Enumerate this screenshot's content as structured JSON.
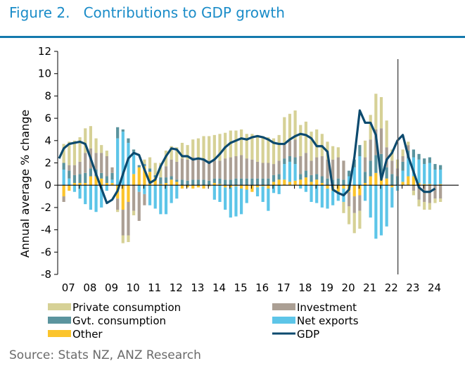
{
  "figure": {
    "title": "Figure 2.   Contributions to GDP growth",
    "source": "Source: Stats NZ, ANZ Research"
  },
  "chart_data": {
    "type": "bar",
    "stacked": true,
    "title": "Contributions to GDP growth",
    "xlabel": "",
    "ylabel": "Annual average % change",
    "ylim": [
      -8,
      12
    ],
    "yticks": [
      12,
      10,
      8,
      6,
      4,
      2,
      0,
      -2,
      -4,
      -6,
      -8
    ],
    "xtick_labels": [
      "07",
      "08",
      "09",
      "10",
      "11",
      "12",
      "13",
      "14",
      "15",
      "16",
      "17",
      "18",
      "19",
      "20",
      "21",
      "22",
      "23",
      "24"
    ],
    "x_start": 2007.0,
    "x_end": 2025.5,
    "frequency": "quarterly",
    "first_period": 2007.25,
    "vertical_marker": 2023.0,
    "grid": false,
    "legend_position": "bottom",
    "colors": {
      "Private consumption": "#d6d196",
      "Investment": "#ab9f94",
      "Gvt. consumption": "#5b949e",
      "Net exports": "#5dc5e8",
      "Other": "#fbc42c",
      "GDP": "#0c4a6e"
    },
    "legend": [
      {
        "name": "Private consumption",
        "kind": "bar"
      },
      {
        "name": "Investment",
        "kind": "bar"
      },
      {
        "name": "Gvt. consumption",
        "kind": "bar"
      },
      {
        "name": "Net exports",
        "kind": "bar"
      },
      {
        "name": "Other",
        "kind": "bar"
      },
      {
        "name": "GDP",
        "kind": "line"
      }
    ],
    "series": [
      {
        "name": "Other",
        "values": [
          -1.0,
          -0.5,
          0.2,
          0.2,
          0.2,
          0.8,
          0.8,
          0.6,
          0.2,
          0.2,
          -1.2,
          -2.2,
          -1.5,
          1.0,
          1.6,
          1.7,
          1.2,
          0.7,
          0.1,
          0.2,
          0.5,
          0.3,
          -0.3,
          -0.2,
          -0.3,
          -0.2,
          -0.3,
          -0.1,
          0.2,
          0.1,
          -0.2,
          -0.2,
          -0.1,
          -0.3,
          -0.4,
          -0.6,
          -0.2,
          -0.1,
          -0.3,
          0.3,
          0.5,
          0.5,
          0.3,
          0.4,
          0.5,
          0.7,
          0.3,
          0.5,
          0.2,
          -0.3,
          -0.5,
          -0.6,
          -0.3,
          -0.6,
          -1.0,
          -0.9,
          0.2,
          0.8,
          1.1,
          1.0,
          0.6,
          -0.2,
          0.0,
          0.3,
          0.8,
          0.8,
          0.2,
          0.1,
          0.1,
          0.0,
          0.1
        ]
      },
      {
        "name": "Net exports",
        "values": [
          1.4,
          0.6,
          -0.6,
          -1.2,
          -1.7,
          -2.2,
          -2.4,
          -2.0,
          -0.5,
          0.3,
          4.2,
          4.8,
          3.8,
          2.0,
          -0.6,
          -0.8,
          -1.8,
          -2.1,
          -2.6,
          -2.6,
          -1.6,
          -1.2,
          0.0,
          0.0,
          0.0,
          0.0,
          0.0,
          0.0,
          -1.3,
          -1.5,
          -2.0,
          -2.7,
          -2.7,
          -2.3,
          -1.2,
          0.0,
          -0.8,
          -1.4,
          -2.0,
          -0.7,
          -0.8,
          1.4,
          1.8,
          1.5,
          -0.3,
          -0.6,
          -1.5,
          -1.6,
          -2.0,
          -1.8,
          -1.3,
          -0.8,
          -1.2,
          0.8,
          1.6,
          2.6,
          -1.4,
          -2.9,
          -4.8,
          -4.5,
          -3.7,
          -1.8,
          -0.5,
          1.0,
          1.6,
          1.7,
          2.1,
          1.8,
          1.9,
          1.4,
          1.3
        ]
      },
      {
        "name": "Gvt. consumption",
        "values": [
          0.6,
          0.7,
          0.7,
          0.8,
          0.9,
          0.7,
          0.6,
          0.5,
          0.6,
          0.6,
          1.0,
          0.2,
          0.4,
          0.2,
          0.2,
          0.2,
          0.3,
          0.2,
          0.6,
          0.5,
          0.3,
          0.2,
          0.5,
          0.4,
          0.5,
          0.5,
          0.5,
          0.4,
          0.4,
          0.5,
          0.5,
          0.5,
          0.6,
          0.6,
          0.6,
          0.6,
          0.6,
          0.6,
          0.6,
          0.6,
          0.5,
          0.5,
          0.5,
          0.6,
          0.5,
          0.6,
          0.6,
          0.5,
          0.6,
          0.6,
          0.5,
          0.6,
          0.5,
          0.5,
          0.7,
          1.0,
          1.0,
          1.4,
          1.6,
          1.8,
          1.0,
          1.0,
          0.8,
          0.8,
          0.7,
          0.7,
          0.5,
          0.5,
          0.5,
          0.5,
          0.4
        ]
      },
      {
        "name": "Investment",
        "values": [
          -0.5,
          0.5,
          0.9,
          1.1,
          1.8,
          1.8,
          1.5,
          1.8,
          1.8,
          0.5,
          -1.0,
          -2.3,
          -3.0,
          -2.3,
          -2.6,
          -1.0,
          0.0,
          0.0,
          0.0,
          1.0,
          1.5,
          1.6,
          1.9,
          1.9,
          2.0,
          1.9,
          1.9,
          1.8,
          1.6,
          1.6,
          1.9,
          2.0,
          2.0,
          2.1,
          1.8,
          1.7,
          1.5,
          1.4,
          1.4,
          1.0,
          1.2,
          1.4,
          1.4,
          1.6,
          1.6,
          1.6,
          1.3,
          1.5,
          1.8,
          1.7,
          1.8,
          1.9,
          1.7,
          -1.3,
          -1.5,
          -1.4,
          1.3,
          1.9,
          2.3,
          2.3,
          1.8,
          1.2,
          0.7,
          0.5,
          0.5,
          -0.5,
          -1.3,
          -1.5,
          -1.6,
          -1.2,
          -1.2
        ]
      },
      {
        "name": "Private consumption",
        "values": [
          1.7,
          2.1,
          2.2,
          2.2,
          2.2,
          2.0,
          1.3,
          0.7,
          0.5,
          0.0,
          -0.2,
          -0.7,
          -0.6,
          -0.4,
          0.0,
          0.4,
          1.0,
          1.1,
          1.3,
          1.4,
          1.2,
          1.3,
          1.4,
          1.3,
          1.6,
          1.8,
          2.0,
          2.2,
          2.3,
          2.4,
          2.3,
          2.4,
          2.3,
          2.3,
          2.2,
          2.3,
          2.4,
          2.4,
          2.3,
          2.3,
          2.3,
          2.3,
          2.4,
          2.6,
          2.8,
          2.8,
          2.6,
          2.5,
          2.0,
          1.6,
          1.2,
          0.9,
          -1.0,
          -1.6,
          -1.8,
          -1.6,
          1.5,
          2.2,
          3.2,
          2.8,
          2.4,
          1.0,
          0.8,
          0.6,
          0.3,
          -0.4,
          -0.6,
          -0.7,
          -0.6,
          -0.4,
          -0.3
        ]
      },
      {
        "name": "GDP",
        "type": "line",
        "values": [
          2.4,
          3.3,
          3.7,
          3.8,
          3.9,
          3.7,
          2.4,
          1.0,
          -0.3,
          -1.6,
          -1.3,
          -0.5,
          1.0,
          2.4,
          2.9,
          2.7,
          1.4,
          0.2,
          0.5,
          1.7,
          2.6,
          3.3,
          3.2,
          2.6,
          2.6,
          2.3,
          2.4,
          2.3,
          2.0,
          2.3,
          2.8,
          3.4,
          3.8,
          4.0,
          4.2,
          4.1,
          4.3,
          4.4,
          4.3,
          4.1,
          3.8,
          3.7,
          3.7,
          4.1,
          4.4,
          4.6,
          4.5,
          4.2,
          3.5,
          3.5,
          3.0,
          -0.4,
          -0.7,
          -0.9,
          -0.4,
          2.5,
          6.7,
          5.6,
          5.6,
          4.5,
          0.5,
          2.3,
          2.9,
          4.0,
          4.5,
          2.6,
          1.2,
          -0.2,
          -0.6,
          -0.6,
          -0.3
        ]
      }
    ]
  }
}
